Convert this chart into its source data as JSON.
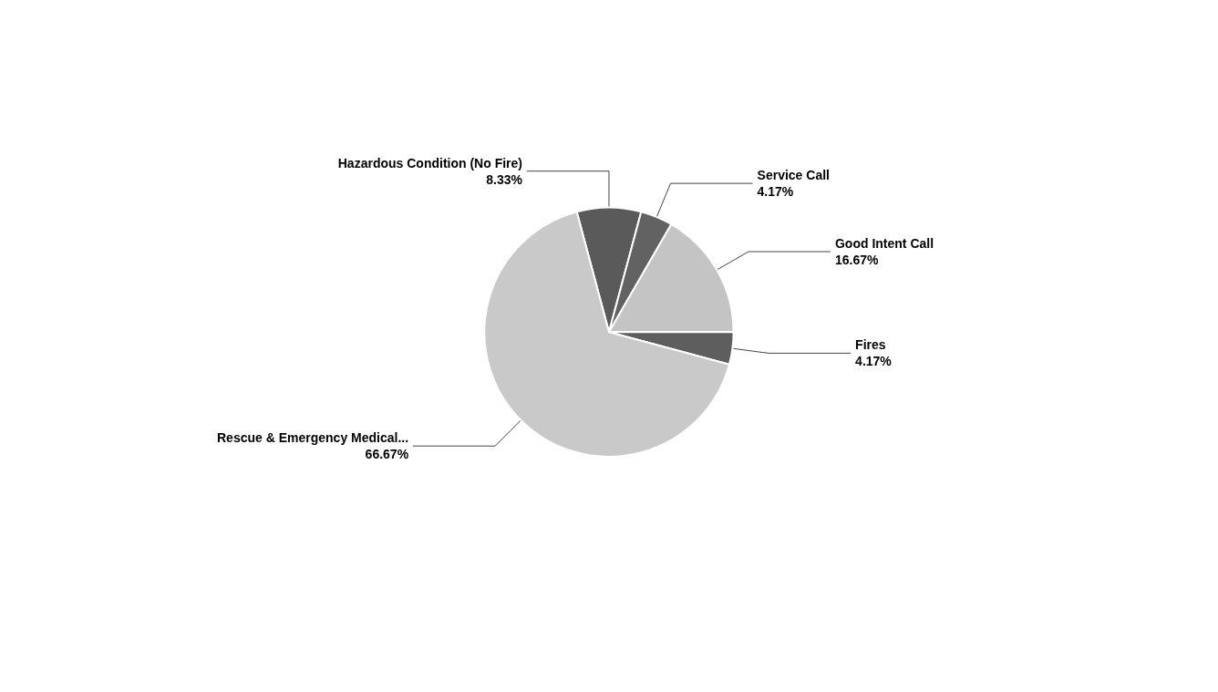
{
  "chart_data": {
    "type": "pie",
    "categories": [
      "Hazardous Condition (No Fire)",
      "Service Call",
      "Good Intent Call",
      "Fires",
      "Rescue & Emergency Medical..."
    ],
    "values": [
      8.33,
      4.17,
      16.67,
      4.17,
      66.67
    ],
    "value_labels": [
      "8.33%",
      "4.17%",
      "16.67%",
      "4.17%",
      "66.67%"
    ],
    "colors": [
      "#5a5a5a",
      "#626262",
      "#c4c4c4",
      "#5e5e5e",
      "#c9c9c9"
    ],
    "legend": false
  }
}
